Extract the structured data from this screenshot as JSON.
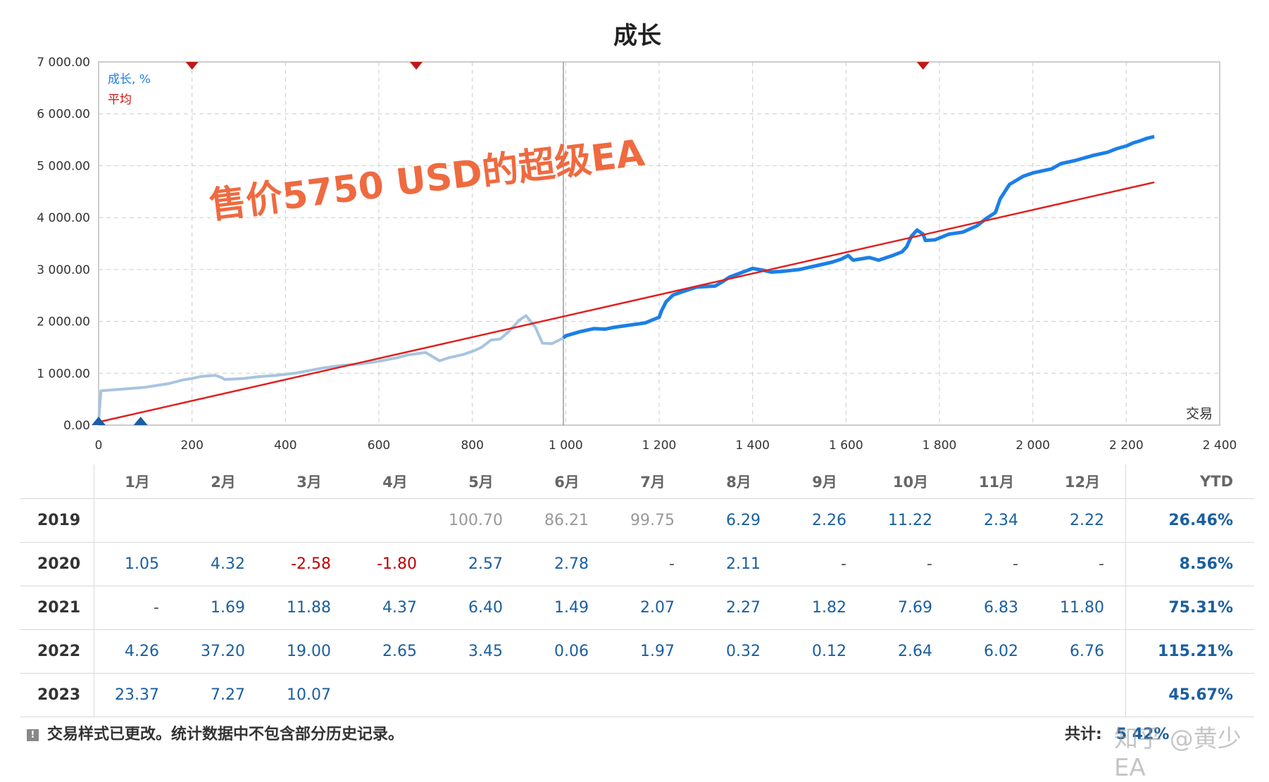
{
  "chart_data": {
    "type": "line",
    "title": "成长",
    "xlabel": "交易",
    "ylabel": "",
    "xlim": [
      0,
      2400
    ],
    "ylim": [
      0,
      7000
    ],
    "x_ticks": [
      "0",
      "200",
      "400",
      "600",
      "800",
      "1 000",
      "1 200",
      "1 400",
      "1 600",
      "1 800",
      "2 000",
      "2 200",
      "2 400"
    ],
    "y_ticks": [
      "0.00",
      "1 000.00",
      "2 000.00",
      "3 000.00",
      "4 000.00",
      "5 000.00",
      "6 000.00",
      "7 000.00"
    ],
    "grid": true,
    "legend_placement": "top-left",
    "series": [
      {
        "name": "成长, %",
        "color": "#1c7fe6",
        "history_color": "#a8c4e0",
        "history_until_x": 995,
        "points": [
          [
            0,
            60
          ],
          [
            5,
            660
          ],
          [
            30,
            680
          ],
          [
            60,
            700
          ],
          [
            100,
            730
          ],
          [
            150,
            800
          ],
          [
            180,
            870
          ],
          [
            200,
            900
          ],
          [
            220,
            940
          ],
          [
            250,
            960
          ],
          [
            265,
            910
          ],
          [
            270,
            880
          ],
          [
            310,
            900
          ],
          [
            340,
            930
          ],
          [
            380,
            960
          ],
          [
            420,
            1000
          ],
          [
            450,
            1050
          ],
          [
            480,
            1100
          ],
          [
            520,
            1150
          ],
          [
            560,
            1180
          ],
          [
            600,
            1230
          ],
          [
            640,
            1300
          ],
          [
            660,
            1350
          ],
          [
            700,
            1400
          ],
          [
            715,
            1320
          ],
          [
            730,
            1240
          ],
          [
            750,
            1300
          ],
          [
            780,
            1360
          ],
          [
            800,
            1420
          ],
          [
            820,
            1500
          ],
          [
            840,
            1640
          ],
          [
            860,
            1660
          ],
          [
            880,
            1820
          ],
          [
            900,
            2020
          ],
          [
            915,
            2110
          ],
          [
            935,
            1890
          ],
          [
            950,
            1580
          ],
          [
            970,
            1570
          ],
          [
            995,
            1680
          ],
          [
            1000,
            1720
          ],
          [
            1030,
            1800
          ],
          [
            1060,
            1860
          ],
          [
            1085,
            1850
          ],
          [
            1100,
            1880
          ],
          [
            1130,
            1920
          ],
          [
            1170,
            1970
          ],
          [
            1200,
            2080
          ],
          [
            1205,
            2200
          ],
          [
            1215,
            2380
          ],
          [
            1230,
            2510
          ],
          [
            1260,
            2600
          ],
          [
            1280,
            2660
          ],
          [
            1320,
            2680
          ],
          [
            1335,
            2760
          ],
          [
            1350,
            2850
          ],
          [
            1400,
            3020
          ],
          [
            1420,
            2990
          ],
          [
            1440,
            2950
          ],
          [
            1460,
            2960
          ],
          [
            1500,
            3000
          ],
          [
            1540,
            3080
          ],
          [
            1570,
            3140
          ],
          [
            1590,
            3200
          ],
          [
            1605,
            3270
          ],
          [
            1615,
            3180
          ],
          [
            1650,
            3230
          ],
          [
            1670,
            3180
          ],
          [
            1700,
            3270
          ],
          [
            1720,
            3340
          ],
          [
            1730,
            3440
          ],
          [
            1740,
            3640
          ],
          [
            1752,
            3760
          ],
          [
            1765,
            3680
          ],
          [
            1770,
            3560
          ],
          [
            1790,
            3570
          ],
          [
            1820,
            3680
          ],
          [
            1850,
            3720
          ],
          [
            1880,
            3840
          ],
          [
            1900,
            3980
          ],
          [
            1920,
            4100
          ],
          [
            1930,
            4360
          ],
          [
            1950,
            4640
          ],
          [
            1980,
            4800
          ],
          [
            2000,
            4860
          ],
          [
            2040,
            4940
          ],
          [
            2060,
            5040
          ],
          [
            2090,
            5100
          ],
          [
            2130,
            5200
          ],
          [
            2160,
            5260
          ],
          [
            2180,
            5330
          ],
          [
            2200,
            5380
          ],
          [
            2215,
            5440
          ],
          [
            2230,
            5480
          ],
          [
            2245,
            5530
          ],
          [
            2260,
            5560
          ]
        ]
      },
      {
        "name": "平均",
        "color": "#e02020",
        "points": [
          [
            0,
            60
          ],
          [
            2260,
            4680
          ]
        ]
      }
    ],
    "top_markers_x": [
      200,
      680,
      1765
    ],
    "bottom_markers_x": [
      0,
      90
    ]
  },
  "annotation": "售价5750 USD的超级EA",
  "table": {
    "headers": [
      "",
      "1月",
      "2月",
      "3月",
      "4月",
      "5月",
      "6月",
      "7月",
      "8月",
      "9月",
      "10月",
      "11月",
      "12月",
      "YTD"
    ],
    "rows": [
      {
        "year": "2019",
        "cells": [
          {
            "v": "",
            "c": ""
          },
          {
            "v": "",
            "c": ""
          },
          {
            "v": "",
            "c": ""
          },
          {
            "v": "",
            "c": ""
          },
          {
            "v": "100.70",
            "c": "gray"
          },
          {
            "v": "86.21",
            "c": "gray"
          },
          {
            "v": "99.75",
            "c": "gray"
          },
          {
            "v": "6.29",
            "c": "pos"
          },
          {
            "v": "2.26",
            "c": "pos"
          },
          {
            "v": "11.22",
            "c": "pos"
          },
          {
            "v": "2.34",
            "c": "pos"
          },
          {
            "v": "2.22",
            "c": "pos"
          }
        ],
        "ytd": "26.46%"
      },
      {
        "year": "2020",
        "cells": [
          {
            "v": "1.05",
            "c": "pos"
          },
          {
            "v": "4.32",
            "c": "pos"
          },
          {
            "v": "-2.58",
            "c": "neg"
          },
          {
            "v": "-1.80",
            "c": "neg"
          },
          {
            "v": "2.57",
            "c": "pos"
          },
          {
            "v": "2.78",
            "c": "pos"
          },
          {
            "v": "-",
            "c": "dash"
          },
          {
            "v": "2.11",
            "c": "pos"
          },
          {
            "v": "-",
            "c": "dash"
          },
          {
            "v": "-",
            "c": "dash"
          },
          {
            "v": "-",
            "c": "dash"
          },
          {
            "v": "-",
            "c": "dash"
          }
        ],
        "ytd": "8.56%"
      },
      {
        "year": "2021",
        "cells": [
          {
            "v": "-",
            "c": "dash"
          },
          {
            "v": "1.69",
            "c": "pos"
          },
          {
            "v": "11.88",
            "c": "pos"
          },
          {
            "v": "4.37",
            "c": "pos"
          },
          {
            "v": "6.40",
            "c": "pos"
          },
          {
            "v": "1.49",
            "c": "pos"
          },
          {
            "v": "2.07",
            "c": "pos"
          },
          {
            "v": "2.27",
            "c": "pos"
          },
          {
            "v": "1.82",
            "c": "pos"
          },
          {
            "v": "7.69",
            "c": "pos"
          },
          {
            "v": "6.83",
            "c": "pos"
          },
          {
            "v": "11.80",
            "c": "pos"
          }
        ],
        "ytd": "75.31%"
      },
      {
        "year": "2022",
        "cells": [
          {
            "v": "4.26",
            "c": "pos"
          },
          {
            "v": "37.20",
            "c": "pos"
          },
          {
            "v": "19.00",
            "c": "pos"
          },
          {
            "v": "2.65",
            "c": "pos"
          },
          {
            "v": "3.45",
            "c": "pos"
          },
          {
            "v": "0.06",
            "c": "pos"
          },
          {
            "v": "1.97",
            "c": "pos"
          },
          {
            "v": "0.32",
            "c": "pos"
          },
          {
            "v": "0.12",
            "c": "pos"
          },
          {
            "v": "2.64",
            "c": "pos"
          },
          {
            "v": "6.02",
            "c": "pos"
          },
          {
            "v": "6.76",
            "c": "pos"
          }
        ],
        "ytd": "115.21%"
      },
      {
        "year": "2023",
        "cells": [
          {
            "v": "23.37",
            "c": "pos"
          },
          {
            "v": "7.27",
            "c": "pos"
          },
          {
            "v": "10.07",
            "c": "pos"
          },
          {
            "v": "",
            "c": ""
          },
          {
            "v": "",
            "c": ""
          },
          {
            "v": "",
            "c": ""
          },
          {
            "v": "",
            "c": ""
          },
          {
            "v": "",
            "c": ""
          },
          {
            "v": "",
            "c": ""
          },
          {
            "v": "",
            "c": ""
          },
          {
            "v": "",
            "c": ""
          },
          {
            "v": "",
            "c": ""
          }
        ],
        "ytd": "45.67%"
      }
    ]
  },
  "footer": {
    "note": "交易样式已更改。统计数据中不包含部分历史记录。",
    "total_label": "共计:",
    "total_value": "5 42%",
    "watermark": "知乎 @黄少EA"
  }
}
